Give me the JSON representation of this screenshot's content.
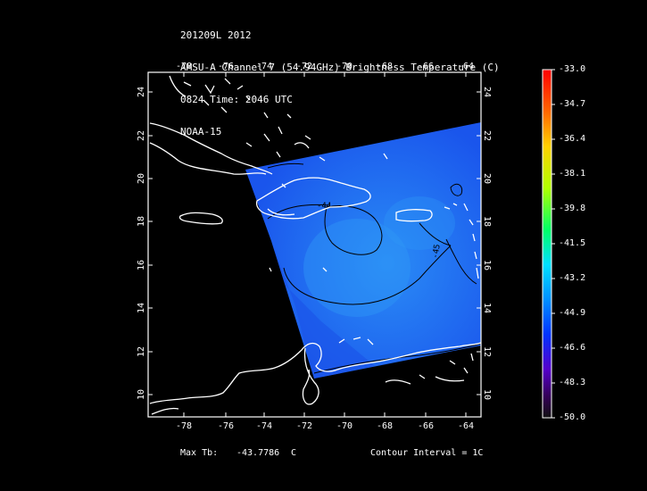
{
  "header": {
    "line1": "201209L 2012",
    "line2": "AMSU-A Channel 7 (54.94GHz) Brightness Temperature (C)",
    "line3": "0824 Time: 2046 UTC",
    "line4": "NOAA-15"
  },
  "map": {
    "lon_ticks_top": [
      "-78",
      "-76",
      "-74",
      "-72",
      "-70",
      "-68",
      "-66",
      "-64"
    ],
    "lon_ticks_bottom": [
      "-78",
      "-76",
      "-74",
      "-72",
      "-70",
      "-68",
      "-66",
      "-64"
    ],
    "lat_ticks_left": [
      "24",
      "22",
      "20",
      "18",
      "16",
      "14",
      "12",
      "10"
    ],
    "lat_ticks_right": [
      "24",
      "22",
      "20",
      "18",
      "16",
      "14",
      "12",
      "10"
    ],
    "contour_labels": [
      "-44",
      "-45"
    ],
    "swath_color": "#1f63f0",
    "coast_color": "#ffffff"
  },
  "colorbar": {
    "ticks": [
      "-33.0",
      "-34.7",
      "-36.4",
      "-38.1",
      "-39.8",
      "-41.5",
      "-43.2",
      "-44.9",
      "-46.6",
      "-48.3",
      "-50.0"
    ],
    "min": -50.0,
    "max": -33.0
  },
  "footer": {
    "max_label": "Max Tb:",
    "max_value": "-43.7786",
    "max_unit": "C",
    "contour_interval": "Contour Interval = 1C"
  }
}
